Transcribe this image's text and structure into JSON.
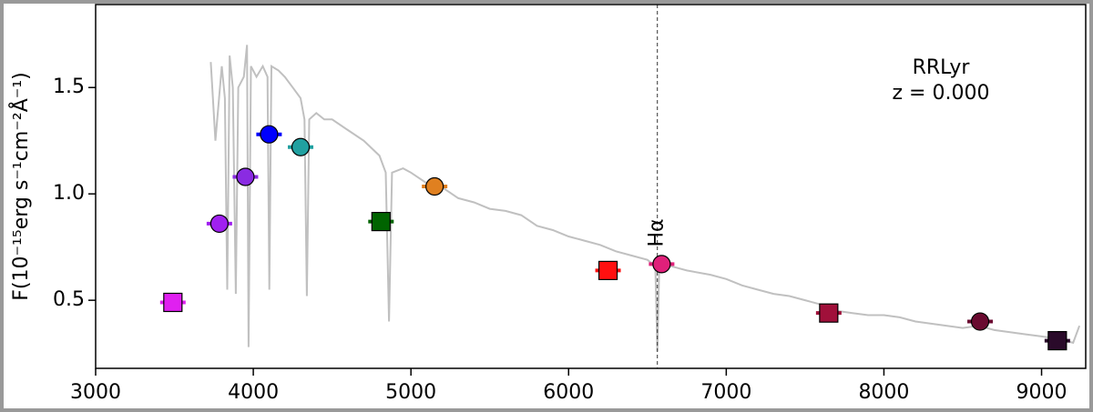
{
  "chart_data": {
    "type": "line",
    "ylabel": "F(10⁻¹⁵erg s⁻¹cm⁻²Å⁻¹)",
    "xlim": [
      3000,
      9280
    ],
    "ylim": [
      0.18,
      1.89
    ],
    "xticks": [
      3000,
      4000,
      5000,
      6000,
      7000,
      8000,
      9000
    ],
    "yticks": [
      0.5,
      {
        "value": 1,
        "label": "1.0"
      },
      1.5
    ],
    "annotation_lines": [
      "RRLyr",
      "z = 0.000"
    ],
    "vline": {
      "text": "Hα",
      "x": 6563
    },
    "spectrum": {
      "color": "#c0c0c0",
      "x": [
        3730,
        3760,
        3800,
        3820,
        3835,
        3850,
        3870,
        3889,
        3905,
        3940,
        3960,
        3970,
        3985,
        4020,
        4060,
        4090,
        4102,
        4115,
        4160,
        4200,
        4250,
        4300,
        4325,
        4340,
        4355,
        4400,
        4450,
        4500,
        4600,
        4700,
        4800,
        4840,
        4861,
        4880,
        4950,
        5000,
        5100,
        5200,
        5300,
        5400,
        5500,
        5600,
        5700,
        5800,
        5900,
        6000,
        6100,
        6200,
        6300,
        6400,
        6500,
        6550,
        6563,
        6575,
        6650,
        6750,
        6900,
        7000,
        7100,
        7200,
        7300,
        7400,
        7500,
        7600,
        7700,
        7800,
        7900,
        8000,
        8100,
        8200,
        8300,
        8400,
        8500,
        8600,
        8700,
        8800,
        8900,
        9000,
        9100,
        9200,
        9240
      ],
      "y": [
        1.62,
        1.25,
        1.6,
        1.45,
        0.55,
        1.65,
        1.5,
        0.53,
        1.5,
        1.55,
        1.7,
        0.28,
        1.6,
        1.55,
        1.6,
        1.55,
        0.55,
        1.6,
        1.58,
        1.55,
        1.5,
        1.45,
        1.35,
        0.52,
        1.35,
        1.38,
        1.35,
        1.35,
        1.3,
        1.25,
        1.18,
        1.1,
        0.4,
        1.1,
        1.12,
        1.1,
        1.05,
        1.03,
        0.98,
        0.96,
        0.93,
        0.92,
        0.9,
        0.85,
        0.83,
        0.8,
        0.78,
        0.76,
        0.73,
        0.71,
        0.69,
        0.66,
        0.26,
        0.66,
        0.66,
        0.64,
        0.62,
        0.6,
        0.57,
        0.55,
        0.53,
        0.52,
        0.5,
        0.48,
        0.45,
        0.44,
        0.43,
        0.43,
        0.42,
        0.4,
        0.39,
        0.38,
        0.37,
        0.38,
        0.36,
        0.35,
        0.34,
        0.33,
        0.32,
        0.3,
        0.38
      ]
    },
    "photometry": {
      "x": [
        3490,
        3785,
        3950,
        4100,
        4300,
        4810,
        5150,
        6250,
        6590,
        7650,
        8610,
        9100
      ],
      "y": [
        0.49,
        0.86,
        1.08,
        1.28,
        1.22,
        0.87,
        1.035,
        0.64,
        0.67,
        0.44,
        0.4,
        0.31
      ],
      "colors": [
        "#e020f0",
        "#a020f0",
        "#8a2be2",
        "#0000ff",
        "#20a0a0",
        "#006400",
        "#e08020",
        "#ff1010",
        "#e0207a",
        "#a0103a",
        "#6a0a30",
        "#2a0a2a"
      ],
      "markers": [
        "square",
        "circle",
        "circle",
        "circle",
        "circle",
        "square",
        "circle",
        "square",
        "circle",
        "square",
        "circle",
        "square"
      ]
    }
  }
}
